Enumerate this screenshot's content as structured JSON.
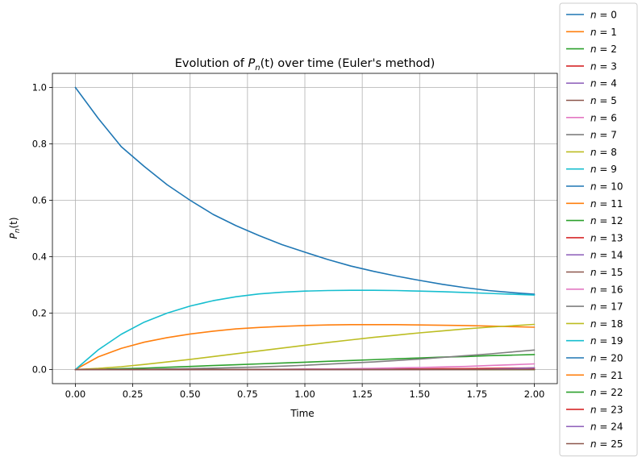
{
  "chart_data": {
    "type": "line",
    "title": "Evolution of P_n(t) over time (Euler's method)",
    "title_parts": {
      "prefix": "Evolution of ",
      "symbol": "P",
      "subscript": "n",
      "arg": "(t)",
      "suffix": " over time (Euler's method)"
    },
    "xlabel": "Time",
    "ylabel": "P_n(t)",
    "ylabel_parts": {
      "symbol": "P",
      "subscript": "n",
      "arg": "(t)"
    },
    "xlim": [
      -0.1,
      2.1
    ],
    "ylim": [
      -0.05,
      1.05
    ],
    "xticks": [
      0.0,
      0.25,
      0.5,
      0.75,
      1.0,
      1.25,
      1.5,
      1.75,
      2.0
    ],
    "xtick_labels": [
      "0.00",
      "0.25",
      "0.50",
      "0.75",
      "1.00",
      "1.25",
      "1.50",
      "1.75",
      "2.00"
    ],
    "yticks": [
      0.0,
      0.2,
      0.4,
      0.6,
      0.8,
      1.0
    ],
    "ytick_labels": [
      "0.0",
      "0.2",
      "0.4",
      "0.6",
      "0.8",
      "1.0"
    ],
    "grid": true,
    "legend_position": "outside-right",
    "x": [
      0.0,
      0.1,
      0.2,
      0.3,
      0.4,
      0.5,
      0.6,
      0.7,
      0.8,
      0.9,
      1.0,
      1.1,
      1.2,
      1.3,
      1.4,
      1.5,
      1.6,
      1.7,
      1.8,
      1.9,
      2.0
    ],
    "series": [
      {
        "name": "n = 0",
        "color": "#1f77b4",
        "values": [
          1.0,
          0.89,
          0.79,
          0.72,
          0.655,
          0.6,
          0.55,
          0.51,
          0.475,
          0.443,
          0.416,
          0.39,
          0.367,
          0.348,
          0.331,
          0.316,
          0.302,
          0.29,
          0.28,
          0.273,
          0.267
        ]
      },
      {
        "name": "n = 1",
        "color": "#ff7f0e",
        "values": [
          0.0,
          0.045,
          0.075,
          0.097,
          0.113,
          0.126,
          0.136,
          0.144,
          0.149,
          0.153,
          0.156,
          0.158,
          0.159,
          0.159,
          0.159,
          0.158,
          0.157,
          0.156,
          0.154,
          0.152,
          0.15
        ]
      },
      {
        "name": "n = 2",
        "color": "#2ca02c",
        "values": [
          0.0,
          0.001,
          0.003,
          0.005,
          0.008,
          0.011,
          0.014,
          0.017,
          0.02,
          0.023,
          0.026,
          0.029,
          0.032,
          0.035,
          0.038,
          0.041,
          0.044,
          0.046,
          0.049,
          0.051,
          0.053
        ]
      },
      {
        "name": "n = 3",
        "color": "#d62728",
        "values": [
          0.0,
          0.0,
          0.0,
          0.0,
          0.0,
          0.0,
          0.0,
          0.0,
          0.0,
          0.0,
          0.0,
          0.001,
          0.001,
          0.001,
          0.002,
          0.002,
          0.003,
          0.003,
          0.004,
          0.005,
          0.006
        ]
      },
      {
        "name": "n = 4",
        "color": "#9467bd",
        "values": [
          0.0,
          0.0,
          0.0,
          0.0,
          0.0,
          0.0,
          0.0,
          0.0,
          0.0,
          0.0,
          0.0,
          0.0,
          0.0,
          0.0,
          0.0,
          0.0,
          0.0,
          0.0,
          0.0,
          0.0,
          0.0
        ]
      },
      {
        "name": "n = 5",
        "color": "#8c564b",
        "values": [
          0.0,
          0.0,
          0.0,
          0.0,
          0.0,
          0.0,
          0.0,
          0.0,
          0.0,
          0.0,
          0.0,
          0.0,
          0.0,
          0.0,
          0.0,
          0.0,
          0.0,
          0.0,
          0.0,
          0.0,
          0.0
        ]
      },
      {
        "name": "n = 6",
        "color": "#e377c2",
        "values": [
          0.0,
          0.0,
          0.0,
          0.0,
          0.0,
          0.0,
          0.0,
          0.0,
          0.001,
          0.001,
          0.002,
          0.002,
          0.003,
          0.004,
          0.006,
          0.007,
          0.009,
          0.011,
          0.014,
          0.017,
          0.02
        ]
      },
      {
        "name": "n = 7",
        "color": "#7f7f7f",
        "values": [
          0.0,
          0.0,
          0.0,
          0.001,
          0.002,
          0.003,
          0.005,
          0.007,
          0.009,
          0.012,
          0.015,
          0.019,
          0.023,
          0.027,
          0.032,
          0.037,
          0.043,
          0.049,
          0.055,
          0.062,
          0.069
        ]
      },
      {
        "name": "n = 8",
        "color": "#bcbd22",
        "values": [
          0.0,
          0.004,
          0.01,
          0.018,
          0.027,
          0.036,
          0.046,
          0.056,
          0.066,
          0.076,
          0.086,
          0.096,
          0.105,
          0.114,
          0.122,
          0.13,
          0.137,
          0.144,
          0.15,
          0.155,
          0.16
        ]
      },
      {
        "name": "n = 9",
        "color": "#17becf",
        "values": [
          0.0,
          0.07,
          0.125,
          0.168,
          0.2,
          0.225,
          0.244,
          0.258,
          0.268,
          0.274,
          0.278,
          0.28,
          0.281,
          0.281,
          0.28,
          0.278,
          0.276,
          0.273,
          0.27,
          0.267,
          0.264
        ]
      },
      {
        "name": "n = 10",
        "color": "#1f77b4",
        "values": [
          0.0,
          0.0,
          0.0,
          0.0,
          0.0,
          0.0,
          0.0,
          0.0,
          0.0,
          0.0,
          0.0,
          0.0,
          0.0,
          0.0,
          0.0,
          0.0,
          0.0,
          0.0,
          0.0,
          0.0,
          0.0
        ]
      },
      {
        "name": "n = 11",
        "color": "#ff7f0e",
        "values": [
          0.0,
          0.0,
          0.0,
          0.0,
          0.0,
          0.0,
          0.0,
          0.0,
          0.0,
          0.0,
          0.0,
          0.0,
          0.0,
          0.0,
          0.0,
          0.0,
          0.0,
          0.0,
          0.0,
          0.0,
          0.0
        ]
      },
      {
        "name": "n = 12",
        "color": "#2ca02c",
        "values": [
          0.0,
          0.0,
          0.0,
          0.0,
          0.0,
          0.0,
          0.0,
          0.0,
          0.0,
          0.0,
          0.0,
          0.0,
          0.0,
          0.0,
          0.0,
          0.0,
          0.0,
          0.0,
          0.0,
          0.0,
          0.0
        ]
      },
      {
        "name": "n = 13",
        "color": "#d62728",
        "values": [
          0.0,
          0.0,
          0.0,
          0.0,
          0.0,
          0.0,
          0.0,
          0.0,
          0.0,
          0.0,
          0.0,
          0.0,
          0.0,
          0.0,
          0.0,
          0.0,
          0.0,
          0.0,
          0.0,
          0.0,
          0.0
        ]
      },
      {
        "name": "n = 14",
        "color": "#9467bd",
        "values": [
          0.0,
          0.0,
          0.0,
          0.0,
          0.0,
          0.0,
          0.0,
          0.0,
          0.0,
          0.0,
          0.0,
          0.0,
          0.0,
          0.0,
          0.0,
          0.0,
          0.0,
          0.0,
          0.0,
          0.0,
          0.0
        ]
      },
      {
        "name": "n = 15",
        "color": "#8c564b",
        "values": [
          0.0,
          0.0,
          0.0,
          0.0,
          0.0,
          0.0,
          0.0,
          0.0,
          0.0,
          0.0,
          0.0,
          0.0,
          0.0,
          0.0,
          0.0,
          0.0,
          0.0,
          0.0,
          0.0,
          0.0,
          0.0
        ]
      },
      {
        "name": "n = 16",
        "color": "#e377c2",
        "values": [
          0.0,
          0.0,
          0.0,
          0.0,
          0.0,
          0.0,
          0.0,
          0.0,
          0.0,
          0.0,
          0.0,
          0.0,
          0.0,
          0.0,
          0.0,
          0.0,
          0.0,
          0.0,
          0.0,
          0.0,
          0.0
        ]
      },
      {
        "name": "n = 17",
        "color": "#7f7f7f",
        "values": [
          0.0,
          0.0,
          0.0,
          0.0,
          0.0,
          0.0,
          0.0,
          0.0,
          0.0,
          0.0,
          0.0,
          0.0,
          0.0,
          0.0,
          0.0,
          0.0,
          0.0,
          0.0,
          0.0,
          0.0,
          0.0
        ]
      },
      {
        "name": "n = 18",
        "color": "#bcbd22",
        "values": [
          0.0,
          0.0,
          0.0,
          0.0,
          0.0,
          0.0,
          0.0,
          0.0,
          0.0,
          0.0,
          0.0,
          0.0,
          0.0,
          0.0,
          0.0,
          0.0,
          0.0,
          0.0,
          0.0,
          0.0,
          0.0
        ]
      },
      {
        "name": "n = 19",
        "color": "#17becf",
        "values": [
          0.0,
          0.0,
          0.0,
          0.0,
          0.0,
          0.0,
          0.0,
          0.0,
          0.0,
          0.0,
          0.0,
          0.0,
          0.0,
          0.0,
          0.0,
          0.0,
          0.0,
          0.0,
          0.0,
          0.0,
          0.0
        ]
      },
      {
        "name": "n = 20",
        "color": "#1f77b4",
        "values": [
          0.0,
          0.0,
          0.0,
          0.0,
          0.0,
          0.0,
          0.0,
          0.0,
          0.0,
          0.0,
          0.0,
          0.0,
          0.0,
          0.0,
          0.0,
          0.0,
          0.0,
          0.0,
          0.0,
          0.0,
          0.0
        ]
      },
      {
        "name": "n = 21",
        "color": "#ff7f0e",
        "values": [
          0.0,
          0.0,
          0.0,
          0.0,
          0.0,
          0.0,
          0.0,
          0.0,
          0.0,
          0.0,
          0.0,
          0.0,
          0.0,
          0.0,
          0.0,
          0.0,
          0.0,
          0.0,
          0.0,
          0.0,
          0.0
        ]
      },
      {
        "name": "n = 22",
        "color": "#2ca02c",
        "values": [
          0.0,
          0.0,
          0.0,
          0.0,
          0.0,
          0.0,
          0.0,
          0.0,
          0.0,
          0.0,
          0.0,
          0.0,
          0.0,
          0.0,
          0.0,
          0.0,
          0.0,
          0.0,
          0.0,
          0.0,
          0.0
        ]
      },
      {
        "name": "n = 23",
        "color": "#d62728",
        "values": [
          0.0,
          0.0,
          0.0,
          0.0,
          0.0,
          0.0,
          0.0,
          0.0,
          0.0,
          0.0,
          0.0,
          0.0,
          0.0,
          0.0,
          0.0,
          0.0,
          0.001,
          0.001,
          0.002,
          0.002,
          0.003
        ]
      },
      {
        "name": "n = 24",
        "color": "#9467bd",
        "values": [
          0.0,
          0.0,
          0.0,
          0.0,
          0.0,
          0.0,
          0.0,
          0.0,
          0.0,
          0.0,
          0.0,
          0.0,
          0.0,
          0.0,
          0.0,
          0.0,
          0.0,
          0.0,
          0.001,
          0.003,
          0.006
        ]
      },
      {
        "name": "n = 25",
        "color": "#8c564b",
        "values": [
          0.0,
          0.0,
          0.0,
          0.0,
          0.0,
          0.0,
          0.0,
          0.0,
          0.0,
          0.0,
          0.0,
          0.0,
          0.0,
          0.0,
          0.0,
          0.0,
          0.0,
          0.0,
          0.0,
          0.0,
          0.0
        ]
      }
    ]
  }
}
